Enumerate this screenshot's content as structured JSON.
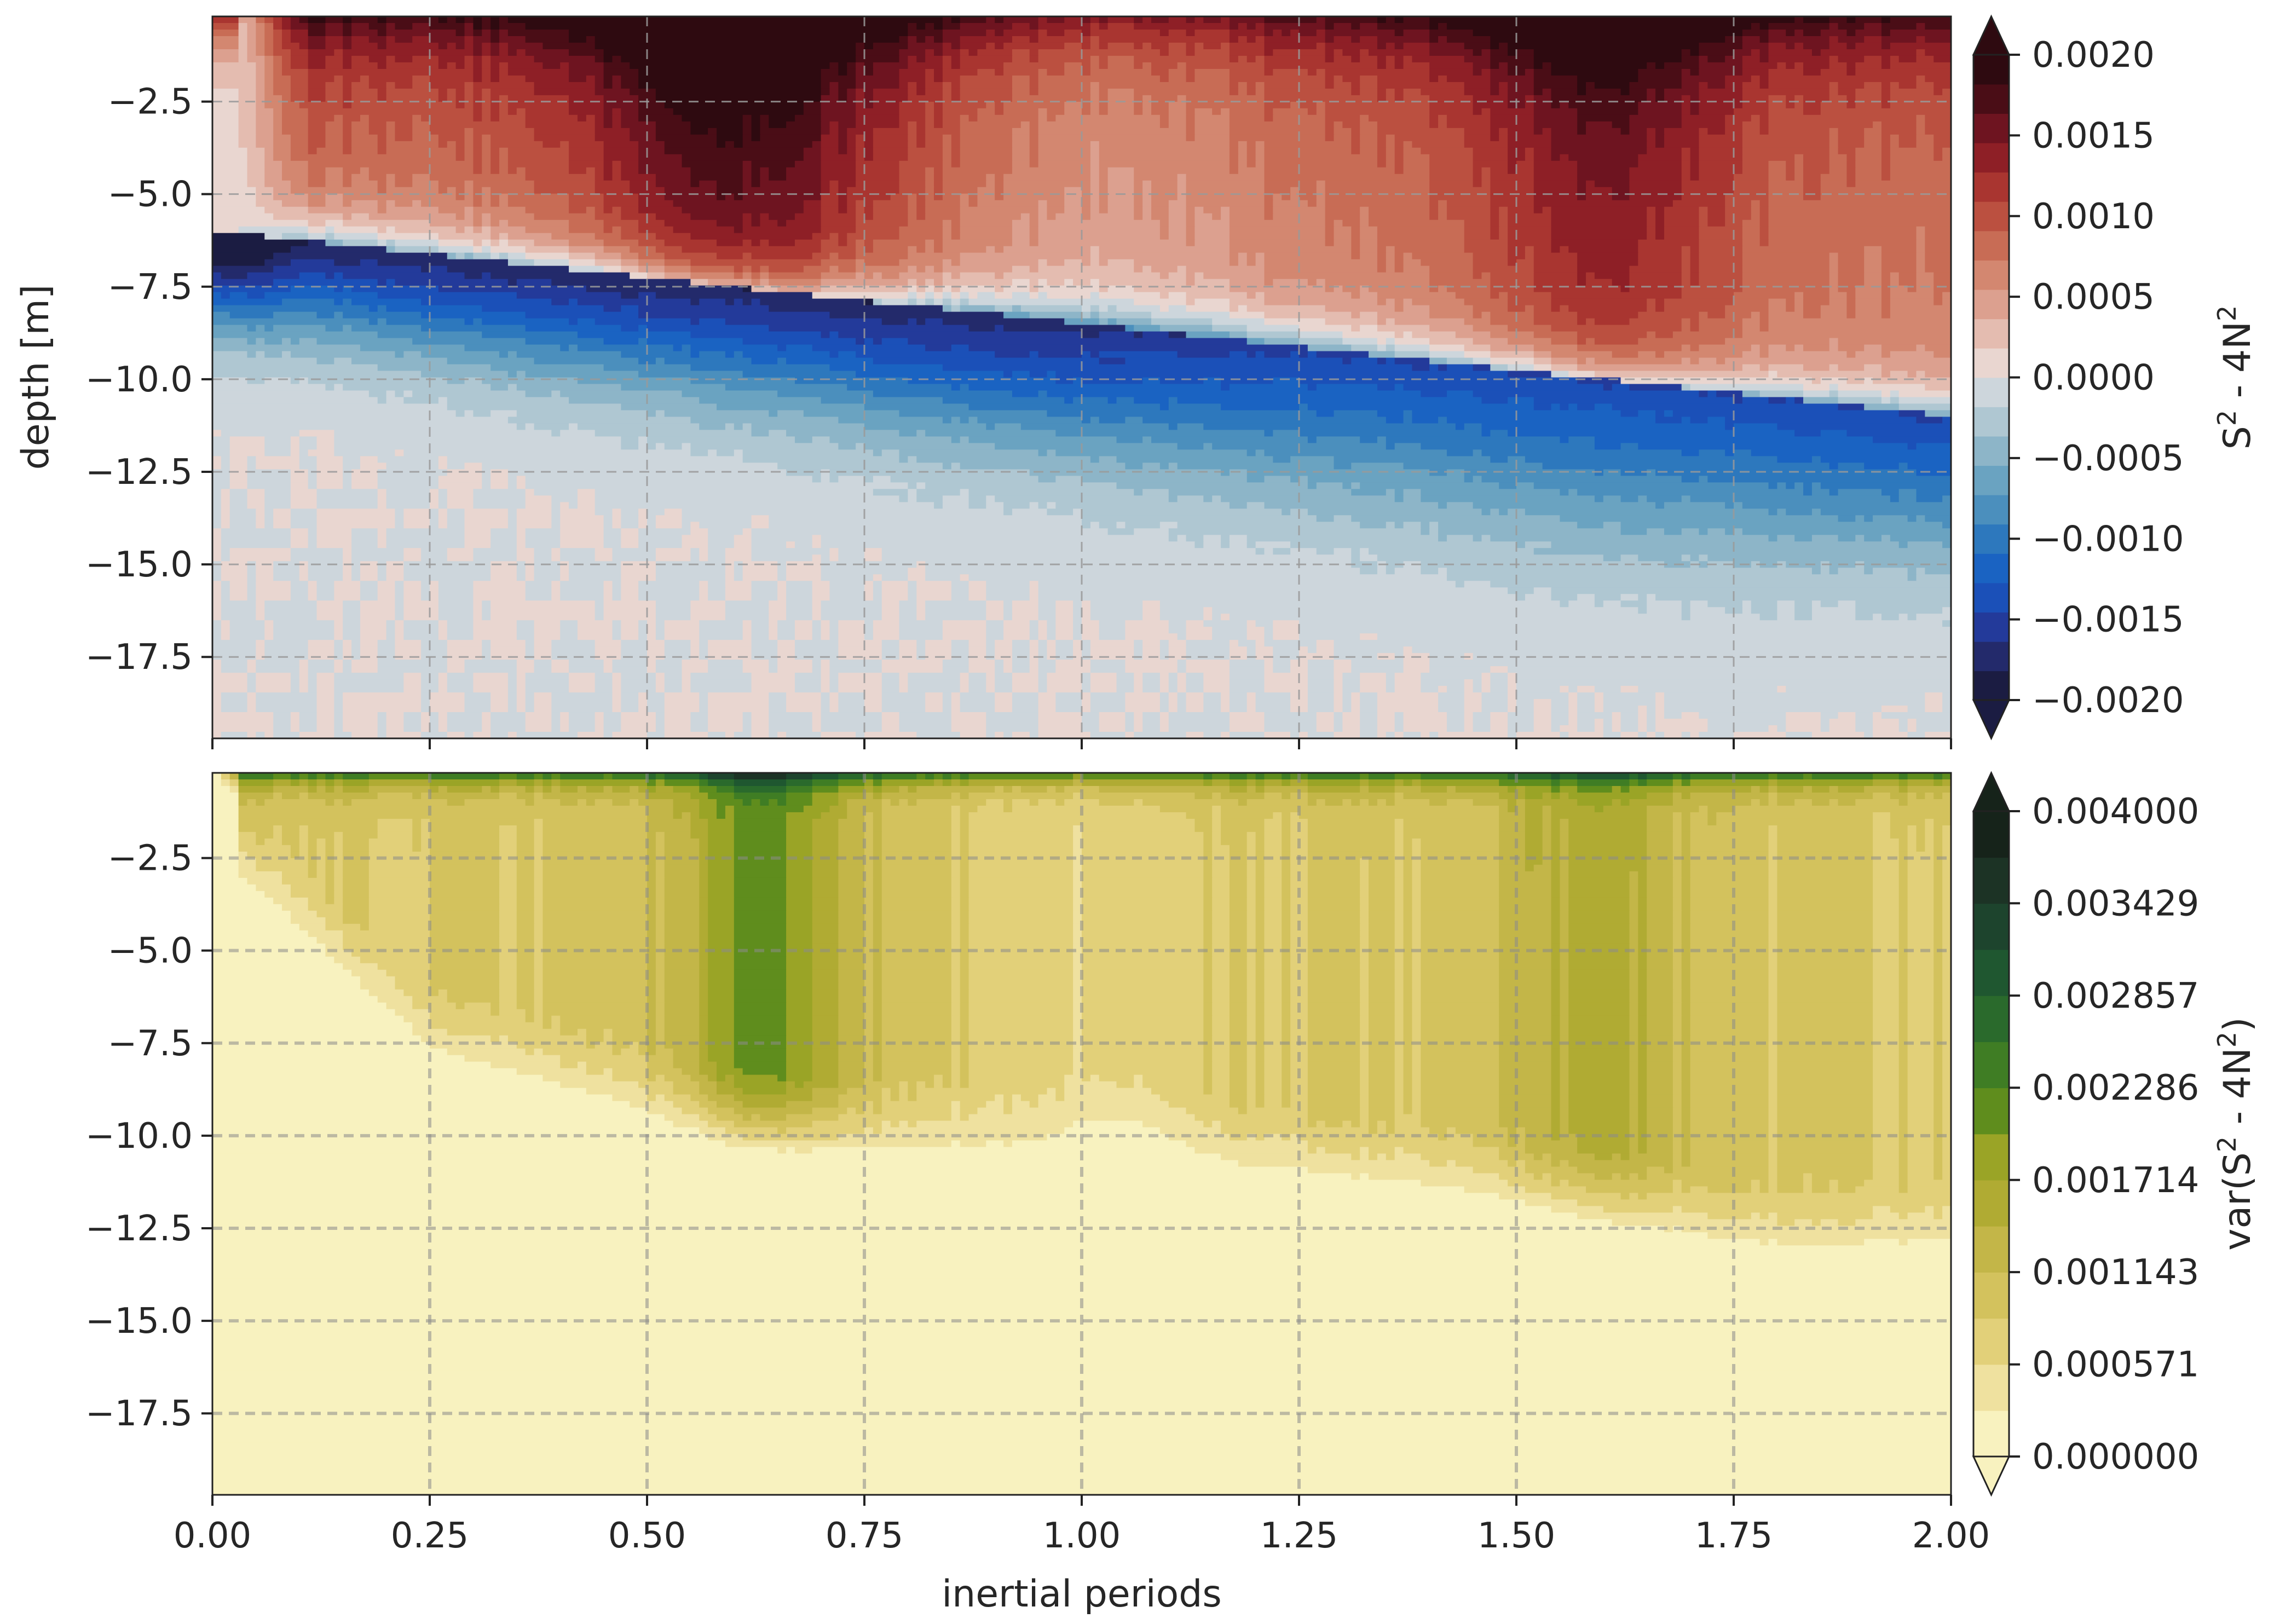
{
  "chart_data": [
    {
      "type": "contour",
      "xlabel": "inertial periods",
      "ylabel": "depth [m]",
      "xlim": [
        0.0,
        2.0
      ],
      "ylim": [
        -19.7,
        -0.2
      ],
      "xticks": [
        0.0,
        0.25,
        0.5,
        0.75,
        1.0,
        1.25,
        1.5,
        1.75,
        2.0
      ],
      "yticks": [
        -2.5,
        -5.0,
        -7.5,
        -10.0,
        -12.5,
        -15.0,
        -17.5
      ],
      "ytick_labels": [
        "−2.5",
        "−5.0",
        "−7.5",
        "−10.0",
        "−12.5",
        "−15.0",
        "−17.5"
      ],
      "grid": true,
      "colormap": "diverging red-white-blue",
      "colorbar": {
        "label": "S² - 4N²",
        "label_parts": {
          "base1": "S",
          "sup1": "2",
          "middle": " - 4N",
          "sup2": "2",
          "tail": ""
        },
        "range": [
          -0.002,
          0.002
        ],
        "ticks": [
          0.002,
          0.0015,
          0.001,
          0.0005,
          0.0,
          -0.0005,
          -0.001,
          -0.0015,
          -0.002
        ],
        "tick_labels": [
          "0.0020",
          "0.0015",
          "0.0010",
          "0.0005",
          "0.0000",
          "−0.0005",
          "−0.0010",
          "−0.0015",
          "−0.0020"
        ],
        "extend": "both",
        "levels": 22
      },
      "features": {
        "boundary_depth_start_end": [
          -6.0,
          -11.0
        ],
        "lower_front_depth_start_end": [
          -11.2,
          -19.2
        ],
        "surface_max_bands": [
          [
            0.45,
            0.72
          ],
          [
            1.48,
            1.72
          ]
        ]
      }
    },
    {
      "type": "contour",
      "xlabel": "inertial periods",
      "ylabel": "",
      "xlim": [
        0.0,
        2.0
      ],
      "ylim": [
        -19.7,
        -0.2
      ],
      "xticks": [
        0.0,
        0.25,
        0.5,
        0.75,
        1.0,
        1.25,
        1.5,
        1.75,
        2.0
      ],
      "xtick_labels": [
        "0.00",
        "0.25",
        "0.50",
        "0.75",
        "1.00",
        "1.25",
        "1.50",
        "1.75",
        "2.00"
      ],
      "yticks": [
        -2.5,
        -5.0,
        -7.5,
        -10.0,
        -12.5,
        -15.0,
        -17.5
      ],
      "ytick_labels": [
        "−2.5",
        "−5.0",
        "−7.5",
        "−10.0",
        "−12.5",
        "−15.0",
        "−17.5"
      ],
      "grid": true,
      "colormap": "sequential cream-olive-green",
      "colorbar": {
        "label": "var(S² - 4N²)",
        "label_parts": {
          "base1": "var(S",
          "sup1": "2",
          "middle": " - 4N",
          "sup2": "2",
          "tail": ")"
        },
        "range": [
          0.0,
          0.004
        ],
        "ticks": [
          0.004,
          0.003429,
          0.002857,
          0.002286,
          0.001714,
          0.001143,
          0.000571,
          0.0
        ],
        "tick_labels": [
          "0.004000",
          "0.003429",
          "0.002857",
          "0.002286",
          "0.001714",
          "0.001143",
          "0.000571",
          "0.000000"
        ],
        "extend": "both",
        "levels": 14
      },
      "features": {
        "mixed_layer_base_depth": [
          [
            0.0,
            -2.0
          ],
          [
            0.25,
            -7.5
          ],
          [
            0.6,
            -9.8
          ],
          [
            1.0,
            -10.5
          ],
          [
            1.25,
            -10.8
          ],
          [
            1.5,
            -11.5
          ],
          [
            1.8,
            -12.8
          ],
          [
            2.0,
            -12.7
          ]
        ],
        "peak_band": [
          0.55,
          0.72
        ],
        "secondary_peak_band": [
          1.45,
          1.72
        ]
      }
    }
  ],
  "colors": {
    "diverging": [
      "#1b1c42",
      "#232a6b",
      "#233a9a",
      "#1b50b8",
      "#1a63c2",
      "#2d78bd",
      "#4b8fbd",
      "#6aa3c1",
      "#8db5c8",
      "#afc7d2",
      "#cdd6dc",
      "#e6e6e6",
      "#e9d6d0",
      "#e4bcb0",
      "#dca08f",
      "#d38770",
      "#c86c55",
      "#bb5040",
      "#a93530",
      "#8e1f26",
      "#6e1420",
      "#4a0d16",
      "#2e0a10"
    ],
    "sequential": [
      "#f8f2bf",
      "#efe19f",
      "#e2d079",
      "#d3c25d",
      "#c3b648",
      "#b0ab33",
      "#9aa426",
      "#7f9a1c",
      "#5f8d1d",
      "#3f7d24",
      "#2a6a2c",
      "#1f5730",
      "#1d442d",
      "#1c3325",
      "#16231a"
    ]
  }
}
